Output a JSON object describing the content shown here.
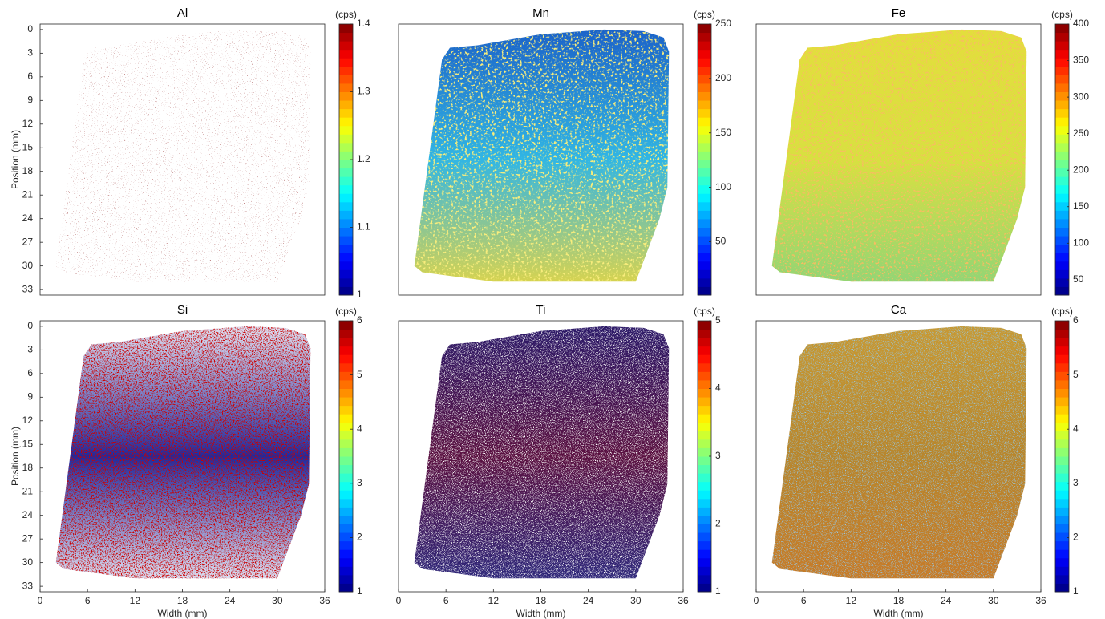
{
  "chart_data": [
    {
      "type": "heatmap",
      "title": "Al",
      "colormap": "jet",
      "colorbar_label": "(cps)",
      "ylabel": "Position (mm)",
      "xlim": [
        0,
        36
      ],
      "ylim": [
        -0.7,
        33.7
      ],
      "y_reversed": true,
      "yticks": [
        0,
        3,
        6,
        9,
        12,
        15,
        18,
        21,
        24,
        27,
        30,
        33
      ],
      "colorbar_lim": [
        1,
        1.4
      ],
      "colorbar_ticks": [
        1,
        1.1,
        1.2,
        1.3,
        1.4
      ]
    },
    {
      "type": "heatmap",
      "title": "Mn",
      "colormap": "jet",
      "colorbar_label": "(cps)",
      "xlim": [
        0,
        36
      ],
      "ylim": [
        -0.7,
        33.7
      ],
      "y_reversed": true,
      "colorbar_lim": [
        1,
        250
      ],
      "colorbar_ticks": [
        50,
        100,
        150,
        200,
        250
      ]
    },
    {
      "type": "heatmap",
      "title": "Fe",
      "colormap": "jet",
      "colorbar_label": "(cps)",
      "xlim": [
        0,
        36
      ],
      "ylim": [
        -0.7,
        33.7
      ],
      "y_reversed": true,
      "colorbar_lim": [
        29,
        400
      ],
      "colorbar_ticks": [
        50,
        100,
        150,
        200,
        250,
        300,
        350,
        400
      ]
    },
    {
      "type": "heatmap",
      "title": "Si",
      "colormap": "jet",
      "colorbar_label": "(cps)",
      "ylabel": "Position (mm)",
      "xlabel": "Width (mm)",
      "xlim": [
        0,
        36
      ],
      "ylim": [
        -0.7,
        33.7
      ],
      "y_reversed": true,
      "xticks": [
        0,
        6,
        12,
        18,
        24,
        30,
        36
      ],
      "yticks": [
        0,
        3,
        6,
        9,
        12,
        15,
        18,
        21,
        24,
        27,
        30,
        33
      ],
      "colorbar_lim": [
        1,
        6
      ],
      "colorbar_ticks": [
        1,
        2,
        3,
        4,
        5,
        6
      ]
    },
    {
      "type": "heatmap",
      "title": "Ti",
      "colormap": "jet",
      "colorbar_label": "(cps)",
      "xlabel": "Width (mm)",
      "xlim": [
        0,
        36
      ],
      "ylim": [
        -0.7,
        33.7
      ],
      "y_reversed": true,
      "xticks": [
        0,
        6,
        12,
        18,
        24,
        30,
        36
      ],
      "colorbar_lim": [
        1,
        5
      ],
      "colorbar_ticks": [
        1,
        2,
        3,
        4,
        5
      ]
    },
    {
      "type": "heatmap",
      "title": "Ca",
      "colormap": "jet",
      "colorbar_label": "(cps)",
      "xlabel": "Width (mm)",
      "xlim": [
        0,
        36
      ],
      "ylim": [
        -0.7,
        33.7
      ],
      "y_reversed": true,
      "xticks": [
        0,
        6,
        12,
        18,
        24,
        30,
        36
      ],
      "colorbar_lim": [
        1,
        6
      ],
      "colorbar_ticks": [
        1,
        2,
        3,
        4,
        5,
        6
      ]
    }
  ]
}
